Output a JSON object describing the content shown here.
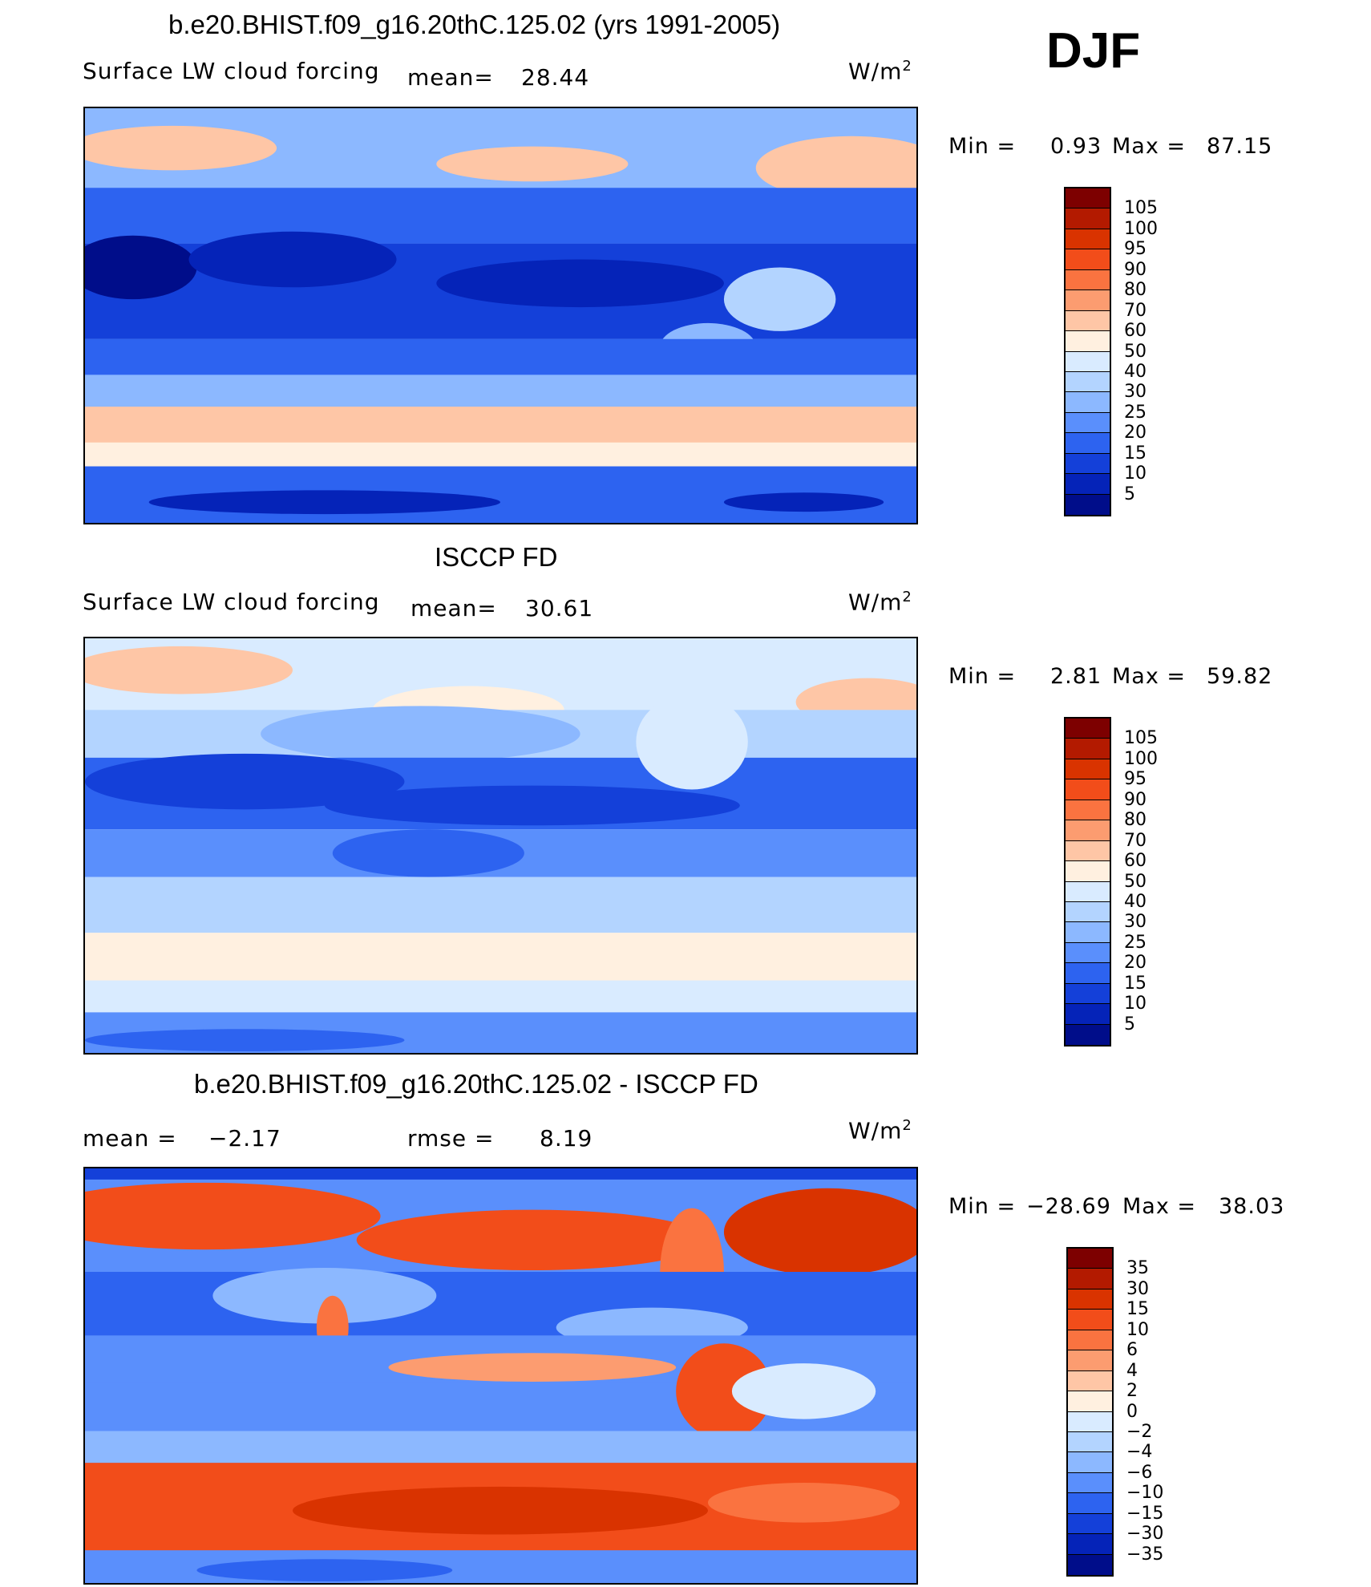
{
  "season": "DJF",
  "chart_data": [
    {
      "type": "heatmap",
      "title": "b.e20.BHIST.f09_g16.20thC.125.02 (yrs 1991-2005)",
      "variable": "Surface LW cloud forcing",
      "mean_label": "mean=",
      "mean": "28.44",
      "units": "W/m",
      "units_exp": "2",
      "min_label": "Min =",
      "min": "0.93",
      "max_label": "Max =",
      "max": "87.15",
      "colorbar": {
        "levels": [
          "105",
          "100",
          "95",
          "90",
          "80",
          "70",
          "60",
          "50",
          "40",
          "30",
          "25",
          "20",
          "15",
          "10",
          "5"
        ],
        "colors": [
          "#7d0000",
          "#b31a00",
          "#d93300",
          "#f24d1a",
          "#fa7340",
          "#fc9c70",
          "#fec6a6",
          "#fff0e0",
          "#d9ebff",
          "#b3d4ff",
          "#8cb8ff",
          "#5a8ffc",
          "#2d63f0",
          "#1440d9",
          "#0523b8",
          "#000d8a"
        ]
      }
    },
    {
      "type": "heatmap",
      "title": "ISCCP FD",
      "variable": "Surface LW cloud forcing",
      "mean_label": "mean=",
      "mean": "30.61",
      "units": "W/m",
      "units_exp": "2",
      "min_label": "Min =",
      "min": "2.81",
      "max_label": "Max =",
      "max": "59.82",
      "colorbar": {
        "levels": [
          "105",
          "100",
          "95",
          "90",
          "80",
          "70",
          "60",
          "50",
          "40",
          "30",
          "25",
          "20",
          "15",
          "10",
          "5"
        ],
        "colors": [
          "#7d0000",
          "#b31a00",
          "#d93300",
          "#f24d1a",
          "#fa7340",
          "#fc9c70",
          "#fec6a6",
          "#fff0e0",
          "#d9ebff",
          "#b3d4ff",
          "#8cb8ff",
          "#5a8ffc",
          "#2d63f0",
          "#1440d9",
          "#0523b8",
          "#000d8a"
        ]
      }
    },
    {
      "type": "heatmap",
      "title": "b.e20.BHIST.f09_g16.20thC.125.02 - ISCCP FD",
      "mean_label": "mean =",
      "mean": "−2.17",
      "rmse_label": "rmse =",
      "rmse": "8.19",
      "units": "W/m",
      "units_exp": "2",
      "min_label": "Min =",
      "min": "−28.69",
      "max_label": "Max =",
      "max": "38.03",
      "colorbar": {
        "levels": [
          "35",
          "30",
          "15",
          "10",
          "6",
          "4",
          "2",
          "0",
          "−2",
          "−4",
          "−6",
          "−10",
          "−15",
          "−30",
          "−35"
        ],
        "colors": [
          "#7d0000",
          "#b31a00",
          "#d93300",
          "#f24d1a",
          "#fa7340",
          "#fc9c70",
          "#fec6a6",
          "#fff0e0",
          "#d9ebff",
          "#b3d4ff",
          "#8cb8ff",
          "#5a8ffc",
          "#2d63f0",
          "#1440d9",
          "#0523b8",
          "#000d8a"
        ]
      }
    }
  ]
}
